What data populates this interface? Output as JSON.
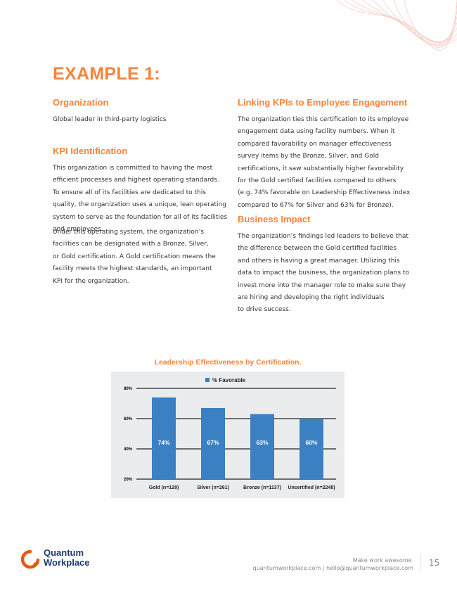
{
  "title": "EXAMPLE 1:",
  "left": {
    "organization": {
      "heading": "Organization",
      "lines": [
        "Global leader in third-party logistics"
      ]
    },
    "kpi": {
      "heading": "KPI Identification",
      "para1": [
        "This organization is committed to having the most",
        "efficient processes and highest operating standards.",
        "To ensure all of its facilities are dedicated to this",
        "quality, the organization uses a unique, lean operating",
        "system to serve as the foundation for all of its facilities",
        "and employees."
      ],
      "para2": [
        "Under this operating system, the organization’s",
        "facilities can be designated with a Bronze, Silver,",
        "or Gold certification. A Gold certification means the",
        "facility meets the highest standards, an important",
        "KPI for the organization."
      ]
    }
  },
  "right": {
    "linking": {
      "heading": "Linking KPIs to Employee Engagement",
      "lines": [
        "The organization ties this certification to its employee",
        "engagement data using facility numbers. When it",
        "compared favorability on manager effectiveness",
        "survey items by the Bronze, Silver, and Gold",
        "certifications, it saw substantially higher favorability",
        "for the Gold certified facilities compared to others",
        "(e.g. 74% favorable on Leadership Effectiveness index",
        "compared to 67% for Silver and 63% for Bronze)."
      ]
    },
    "impact": {
      "heading": "Business Impact",
      "lines": [
        "The organization’s findings led leaders to believe that",
        "the difference between the Gold certified facilities",
        "and others is having a great manager. Utilizing this",
        "data to impact the business, the organization plans to",
        "invest more into the manager role to make sure they",
        "are hiring and developing the right individuals",
        "to drive success."
      ]
    }
  },
  "chart_data": {
    "type": "bar",
    "title": "Leadership Effectiveness by Certification.",
    "categories": [
      "Gold (n=129)",
      "Silver (n=261)",
      "Bronze (n=1137)",
      "Uncertified (n=2248)"
    ],
    "series": [
      {
        "name": "% Favorable",
        "values": [
          74,
          67,
          63,
          60
        ],
        "color": "#3a80c3"
      }
    ],
    "data_labels": [
      "74%",
      "67%",
      "63%",
      "60%"
    ],
    "yticks": [
      "20%",
      "40%",
      "60%",
      "80%"
    ],
    "ylim": [
      20,
      80
    ],
    "grid": true,
    "legend": "top-center",
    "background": "#ebeced"
  },
  "footer": {
    "brand": [
      "Quantum",
      "Workplace"
    ],
    "tagline": "Make work awesome.",
    "contact": "quantumworkplace.com | hello@quantumworkplace.com",
    "page_number": "15"
  },
  "colors": {
    "accent": "#f5843c",
    "brand_navy": "#1d3a6e",
    "brand_orange": "#e8590c"
  }
}
